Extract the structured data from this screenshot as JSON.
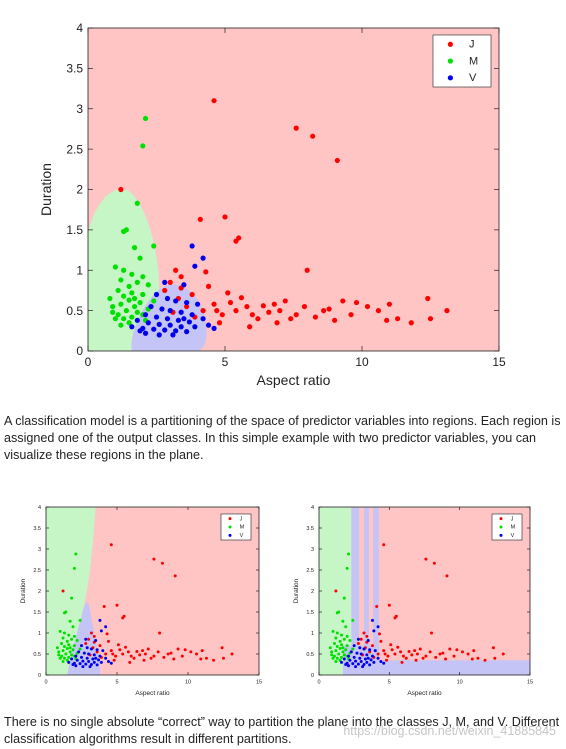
{
  "colors": {
    "J": "#ff0000",
    "M": "#00e000",
    "V": "#0000ee",
    "region_J": "#ffc4c4",
    "region_M": "#c6f5c6",
    "region_V": "#c4c4f6"
  },
  "text": {
    "paragraph1": "A classification model is a partitioning of the space of predictor variables into regions. Each region is assigned one of the output classes. In this simple example with two predictor variables, you can visualize these regions in the plane.",
    "paragraph2": "There is no single absolute “correct” way to partition the plane into the classes J, M, and V. Different classification algorithms result in different partitions.",
    "watermark": "https://blog.csdn.net/weixin_41885845"
  },
  "chart_data": [
    {
      "type": "scatter",
      "xlabel": "Aspect ratio",
      "ylabel": "Duration",
      "xlim": [
        0,
        15
      ],
      "ylim": [
        0,
        4
      ],
      "xticks": [
        0,
        5,
        10,
        15
      ],
      "yticks": [
        0,
        0.5,
        1,
        1.5,
        2,
        2.5,
        3,
        3.5,
        4
      ],
      "legend": [
        "J",
        "M",
        "V"
      ],
      "legend_position": "top-right",
      "regions": "elliptical M region near x≈1–2.5, V region near x≈1.5–4 below y≈0.7, J elsewhere",
      "series": [
        {
          "name": "J",
          "points": [
            [
              4.6,
              3.1
            ],
            [
              7.6,
              2.76
            ],
            [
              8.2,
              2.66
            ],
            [
              9.1,
              2.36
            ],
            [
              1.2,
              2.0
            ],
            [
              4.1,
              1.63
            ],
            [
              5.0,
              1.66
            ],
            [
              5.4,
              1.36
            ],
            [
              5.5,
              1.4
            ],
            [
              8.0,
              1.0
            ],
            [
              12.4,
              0.65
            ],
            [
              13.1,
              0.5
            ],
            [
              12.5,
              0.4
            ],
            [
              11.3,
              0.4
            ],
            [
              10.9,
              0.38
            ],
            [
              10.2,
              0.55
            ],
            [
              9.8,
              0.6
            ],
            [
              9.3,
              0.62
            ],
            [
              8.6,
              0.5
            ],
            [
              7.9,
              0.55
            ],
            [
              7.2,
              0.62
            ],
            [
              6.6,
              0.48
            ],
            [
              6.2,
              0.4
            ],
            [
              5.8,
              0.55
            ],
            [
              5.2,
              0.6
            ],
            [
              4.9,
              0.45
            ],
            [
              4.6,
              0.58
            ],
            [
              4.2,
              0.5
            ],
            [
              3.9,
              0.42
            ],
            [
              3.6,
              0.55
            ],
            [
              3.3,
              0.65
            ],
            [
              3.1,
              0.48
            ],
            [
              3.4,
              0.78
            ],
            [
              3.8,
              0.7
            ],
            [
              4.4,
              0.8
            ],
            [
              5.1,
              0.72
            ],
            [
              5.6,
              0.66
            ],
            [
              6.4,
              0.56
            ],
            [
              7.0,
              0.5
            ],
            [
              7.6,
              0.45
            ],
            [
              8.3,
              0.42
            ],
            [
              9.0,
              0.38
            ],
            [
              9.6,
              0.45
            ],
            [
              10.6,
              0.5
            ],
            [
              11.0,
              0.58
            ],
            [
              11.8,
              0.35
            ],
            [
              6.9,
              0.35
            ],
            [
              5.9,
              0.3
            ],
            [
              4.8,
              0.35
            ],
            [
              3.2,
              1.0
            ],
            [
              3.4,
              0.92
            ],
            [
              3.0,
              0.85
            ],
            [
              4.3,
              0.98
            ],
            [
              2.8,
              0.75
            ],
            [
              6.0,
              0.45
            ],
            [
              6.8,
              0.58
            ],
            [
              7.4,
              0.4
            ],
            [
              8.8,
              0.52
            ],
            [
              5.4,
              0.5
            ],
            [
              4.7,
              0.5
            ]
          ]
        },
        {
          "name": "M",
          "points": [
            [
              2.1,
              2.88
            ],
            [
              2.0,
              2.54
            ],
            [
              1.4,
              1.5
            ],
            [
              1.3,
              1.48
            ],
            [
              1.8,
              1.83
            ],
            [
              2.4,
              1.3
            ],
            [
              1.7,
              1.28
            ],
            [
              1.9,
              1.15
            ],
            [
              1.0,
              1.04
            ],
            [
              1.3,
              1.0
            ],
            [
              1.6,
              0.95
            ],
            [
              2.0,
              0.92
            ],
            [
              1.2,
              0.88
            ],
            [
              1.8,
              0.85
            ],
            [
              2.2,
              0.82
            ],
            [
              1.5,
              0.8
            ],
            [
              1.1,
              0.75
            ],
            [
              1.6,
              0.72
            ],
            [
              2.0,
              0.7
            ],
            [
              1.3,
              0.68
            ],
            [
              0.8,
              0.65
            ],
            [
              1.5,
              0.63
            ],
            [
              1.9,
              0.6
            ],
            [
              1.2,
              0.58
            ],
            [
              1.7,
              0.55
            ],
            [
              2.2,
              0.52
            ],
            [
              0.9,
              0.55
            ],
            [
              1.4,
              0.5
            ],
            [
              1.8,
              0.48
            ],
            [
              1.1,
              0.45
            ],
            [
              1.6,
              0.42
            ],
            [
              2.0,
              0.45
            ],
            [
              1.3,
              0.4
            ],
            [
              0.9,
              0.48
            ],
            [
              1.7,
              0.65
            ],
            [
              2.4,
              0.62
            ],
            [
              1.0,
              0.4
            ],
            [
              1.5,
              0.35
            ],
            [
              2.1,
              0.38
            ],
            [
              1.2,
              0.32
            ]
          ]
        },
        {
          "name": "V",
          "points": [
            [
              3.8,
              1.3
            ],
            [
              4.2,
              1.15
            ],
            [
              3.9,
              1.05
            ],
            [
              2.8,
              0.85
            ],
            [
              3.5,
              0.82
            ],
            [
              2.5,
              0.7
            ],
            [
              2.9,
              0.65
            ],
            [
              3.2,
              0.62
            ],
            [
              3.6,
              0.6
            ],
            [
              4.0,
              0.58
            ],
            [
              2.3,
              0.55
            ],
            [
              2.7,
              0.52
            ],
            [
              3.0,
              0.5
            ],
            [
              3.4,
              0.48
            ],
            [
              3.8,
              0.45
            ],
            [
              2.1,
              0.45
            ],
            [
              2.5,
              0.42
            ],
            [
              2.9,
              0.4
            ],
            [
              3.3,
              0.38
            ],
            [
              3.7,
              0.36
            ],
            [
              4.2,
              0.4
            ],
            [
              1.8,
              0.38
            ],
            [
              2.2,
              0.35
            ],
            [
              2.6,
              0.33
            ],
            [
              3.0,
              0.32
            ],
            [
              3.4,
              0.3
            ],
            [
              3.9,
              0.3
            ],
            [
              4.4,
              0.32
            ],
            [
              1.6,
              0.3
            ],
            [
              2.0,
              0.28
            ],
            [
              2.4,
              0.27
            ],
            [
              2.8,
              0.26
            ],
            [
              3.2,
              0.25
            ],
            [
              3.6,
              0.24
            ],
            [
              4.6,
              0.28
            ],
            [
              2.1,
              0.22
            ],
            [
              2.6,
              0.2
            ],
            [
              3.1,
              0.2
            ],
            [
              1.9,
              0.25
            ],
            [
              3.5,
              0.4
            ]
          ]
        }
      ]
    },
    {
      "type": "scatter",
      "xlabel": "Aspect ratio",
      "ylabel": "Duration",
      "xlim": [
        0,
        15
      ],
      "ylim": [
        0,
        4
      ],
      "xticks": [
        0,
        5,
        10,
        15
      ],
      "yticks": [
        0,
        0.5,
        1,
        1.5,
        2,
        2.5,
        3,
        3.5,
        4
      ],
      "legend": [
        "J",
        "M",
        "V"
      ],
      "legend_position": "top-right",
      "regions": "M region left of a curving boundary from x≈3.5 at top to x≈1.5 at bottom; V band at x≈2.3–3.8 below y≈1.6; J right",
      "same_points_as": 0
    },
    {
      "type": "scatter",
      "xlabel": "Aspect ratio",
      "ylabel": "Duration",
      "xlim": [
        0,
        15
      ],
      "ylim": [
        0,
        4
      ],
      "xticks": [
        0,
        5,
        10,
        15
      ],
      "yticks": [
        0,
        0.5,
        1,
        1.5,
        2,
        2.5,
        3,
        3.5,
        4
      ],
      "legend": [
        "J",
        "M",
        "V"
      ],
      "legend_position": "top-right",
      "regions": "axis-aligned partition: M left of x≈1.7 and x 1.7–2.3; V vertical strips at x≈2.3–2.8, 3.2–3.6, 3.9–4.3; V bottom band y<0.35; J elsewhere",
      "same_points_as": 0
    }
  ]
}
